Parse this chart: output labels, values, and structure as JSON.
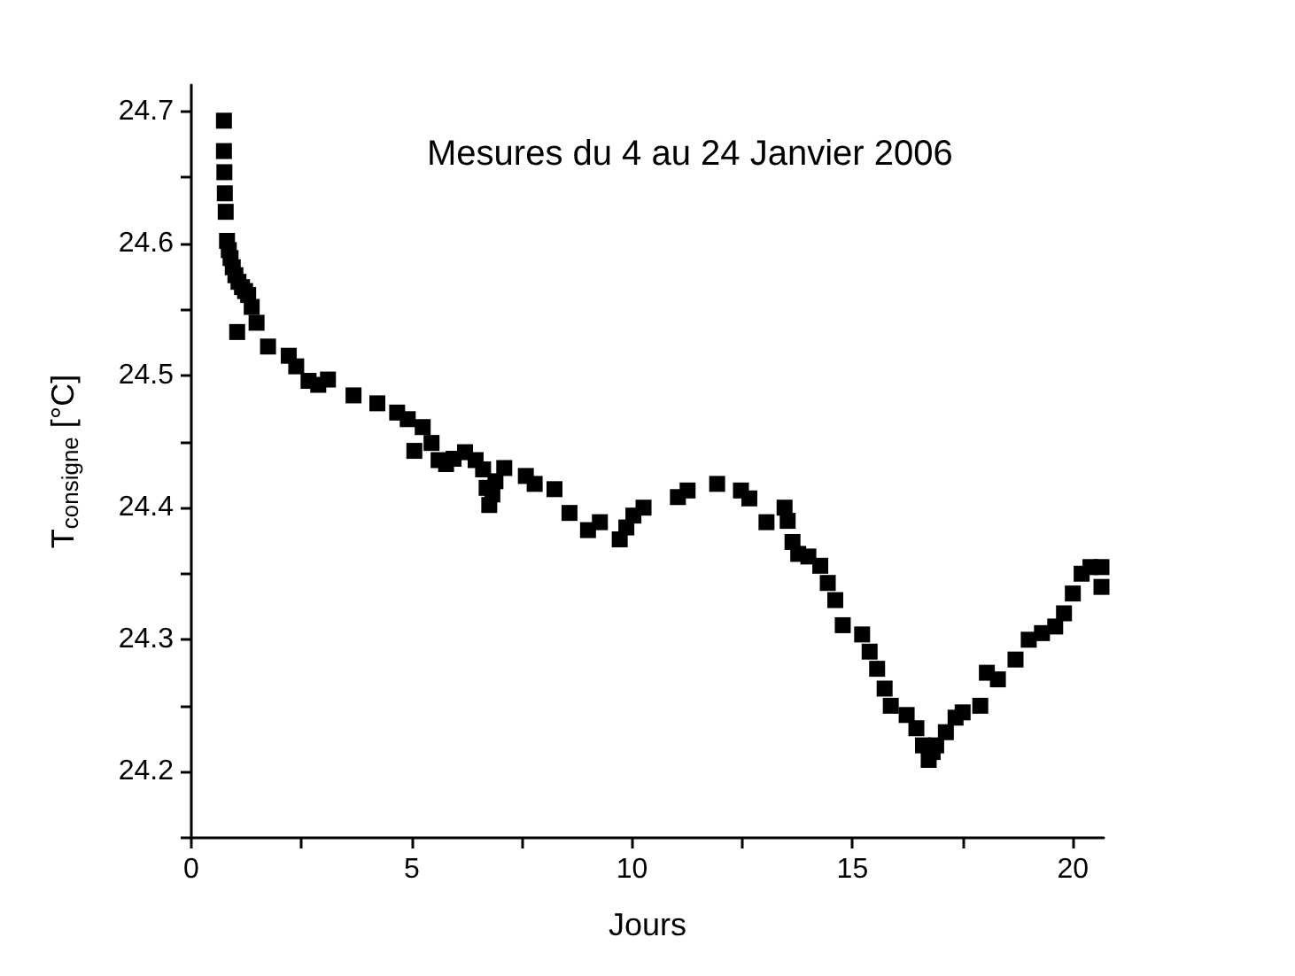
{
  "chart_data": {
    "type": "scatter",
    "title": "Mesures du 4 au 24 Janvier 2006",
    "xlabel": "Jours",
    "ylabel": "T$_{consigne}$ [°C]",
    "xlim": [
      0,
      20.7
    ],
    "ylim": [
      24.15,
      24.72
    ],
    "xticks": [
      0,
      {
        "value": 2.5,
        "label": null
      },
      5,
      {
        "value": 7.5,
        "label": null
      },
      10,
      {
        "value": 12.5,
        "label": null
      },
      15,
      {
        "value": 17.5,
        "label": null
      },
      20
    ],
    "yticks": [
      {
        "value": 24.15,
        "label": null
      },
      24.2,
      {
        "value": 24.25,
        "label": null
      },
      24.3,
      {
        "value": 24.35,
        "label": null
      },
      24.4,
      {
        "value": 24.45,
        "label": null
      },
      24.5,
      {
        "value": 24.55,
        "label": null
      },
      24.6,
      {
        "value": 24.65,
        "label": null
      },
      24.7
    ],
    "marker": "square",
    "series": [
      {
        "color": "#000000",
        "x": [
          0.74,
          0.74,
          0.75,
          0.76,
          0.78,
          0.81,
          0.85,
          0.89,
          0.94,
          1.0,
          1.07,
          1.15,
          1.22,
          1.29,
          1.37,
          1.04,
          1.48,
          1.74,
          2.21,
          2.38,
          2.66,
          2.88,
          3.1,
          3.68,
          4.22,
          4.67,
          4.91,
          5.06,
          5.25,
          5.45,
          5.61,
          5.78,
          5.95,
          6.21,
          6.45,
          6.62,
          6.7,
          6.76,
          6.83,
          6.9,
          7.1,
          7.59,
          7.79,
          8.24,
          8.58,
          9.0,
          9.27,
          9.72,
          9.87,
          10.03,
          10.26,
          11.04,
          11.26,
          11.93,
          12.47,
          12.66,
          13.05,
          13.46,
          13.53,
          13.64,
          13.77,
          14.0,
          14.27,
          14.44,
          14.61,
          14.78,
          15.22,
          15.39,
          15.56,
          15.73,
          15.87,
          16.23,
          16.45,
          16.6,
          16.73,
          16.82,
          16.9,
          17.12,
          17.34,
          17.5,
          17.9,
          18.05,
          18.3,
          18.7,
          19.0,
          19.3,
          19.6,
          19.8,
          20.0,
          20.2,
          20.4,
          20.65,
          20.65
        ],
        "values": [
          24.693,
          24.67,
          24.654,
          24.638,
          24.624,
          24.602,
          24.595,
          24.589,
          24.582,
          24.576,
          24.571,
          24.567,
          24.564,
          24.561,
          24.552,
          24.533,
          24.54,
          24.522,
          24.515,
          24.507,
          24.496,
          24.493,
          24.497,
          24.485,
          24.479,
          24.472,
          24.467,
          24.443,
          24.461,
          24.449,
          24.436,
          24.433,
          24.437,
          24.442,
          24.436,
          24.429,
          24.415,
          24.402,
          24.41,
          24.42,
          24.43,
          24.424,
          24.418,
          24.414,
          24.396,
          24.383,
          24.389,
          24.376,
          24.385,
          24.394,
          24.4,
          24.408,
          24.413,
          24.418,
          24.413,
          24.407,
          24.389,
          24.4,
          24.39,
          24.374,
          24.365,
          24.363,
          24.356,
          24.343,
          24.33,
          24.311,
          24.304,
          24.291,
          24.278,
          24.263,
          24.25,
          24.243,
          24.233,
          24.22,
          24.209,
          24.215,
          24.22,
          24.23,
          24.241,
          24.245,
          24.25,
          24.275,
          24.27,
          24.285,
          24.3,
          24.305,
          24.31,
          24.32,
          24.335,
          24.35,
          24.355,
          24.355,
          24.34
        ]
      }
    ]
  }
}
